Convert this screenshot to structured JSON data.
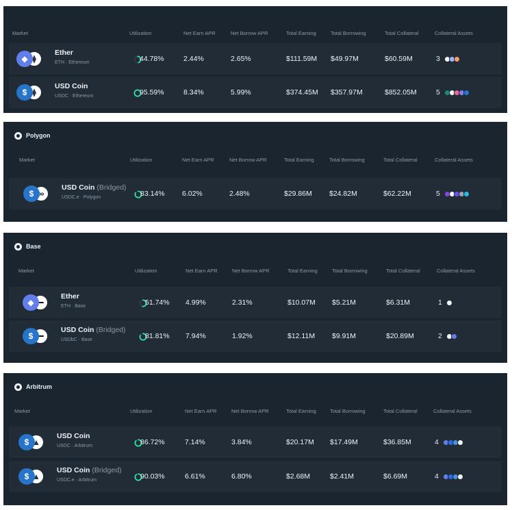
{
  "columns": [
    "Market",
    "Utilization",
    "Net Earn APR",
    "Net Borrow APR",
    "Total Earning",
    "Total Borrowing",
    "Total Collateral",
    "Collateral Assets"
  ],
  "panels": [
    {
      "chain": "",
      "rows": [
        {
          "token": "Ether",
          "bridged": "",
          "sub": "ETH · Ethereum",
          "icon": "eth",
          "net": "ethereum",
          "util": "44.78%",
          "util_fraction": 0.4478,
          "earn": "2.44%",
          "borrow": "2.65%",
          "total_earning": "$111.59M",
          "total_borrowing": "$49.97M",
          "total_collateral": "$60.59M",
          "assets_count": "3",
          "asset_colors": [
            "#f2f4f7",
            "#a5b4fc",
            "#f59e6b"
          ]
        },
        {
          "token": "USD Coin",
          "bridged": "",
          "sub": "USDC · Ethereum",
          "icon": "usdc",
          "net": "ethereum",
          "util": "95.59%",
          "util_fraction": 0.9559,
          "earn": "8.34%",
          "borrow": "5.99%",
          "total_earning": "$374.45M",
          "total_borrowing": "$357.97M",
          "total_collateral": "$852.05M",
          "assets_count": "5",
          "asset_colors": [
            "#1f8a70",
            "#f2f4f7",
            "#e96a8d",
            "#8b7cf6",
            "#2775ca"
          ]
        }
      ]
    },
    {
      "chain": "Polygon",
      "rows": [
        {
          "token": "USD Coin",
          "bridged": "(Bridged)",
          "sub": "USDC.e · Polygon",
          "icon": "usdc",
          "net": "polygon",
          "util": "83.14%",
          "util_fraction": 0.8314,
          "earn": "6.02%",
          "borrow": "2.48%",
          "total_earning": "$29.86M",
          "total_borrowing": "$24.82M",
          "total_collateral": "$62.22M",
          "assets_count": "5",
          "asset_colors": [
            "#8247e5",
            "#f2f4f7",
            "#6f4cff",
            "#9aa4b2",
            "#2bb9e6"
          ]
        }
      ]
    },
    {
      "chain": "Base",
      "rows": [
        {
          "token": "Ether",
          "bridged": "",
          "sub": "ETH · Base",
          "icon": "eth",
          "net": "base",
          "util": "51.74%",
          "util_fraction": 0.5174,
          "earn": "4.99%",
          "borrow": "2.31%",
          "total_earning": "$10.07M",
          "total_borrowing": "$5.21M",
          "total_collateral": "$6.31M",
          "assets_count": "1",
          "asset_colors": [
            "#f2f4f7"
          ]
        },
        {
          "token": "USD Coin",
          "bridged": "(Bridged)",
          "sub": "USDbC · Base",
          "icon": "usdc",
          "net": "base",
          "util": "81.81%",
          "util_fraction": 0.8181,
          "earn": "7.94%",
          "borrow": "1.92%",
          "total_earning": "$12.11M",
          "total_borrowing": "$9.91M",
          "total_collateral": "$20.89M",
          "assets_count": "2",
          "asset_colors": [
            "#f2f4f7",
            "#627eea"
          ]
        }
      ]
    },
    {
      "chain": "Arbitrum",
      "rows": [
        {
          "token": "USD Coin",
          "bridged": "",
          "sub": "USDC · Arbitrum",
          "icon": "usdc",
          "net": "arbitrum",
          "util": "86.72%",
          "util_fraction": 0.8672,
          "earn": "7.14%",
          "borrow": "3.84%",
          "total_earning": "$20.17M",
          "total_borrowing": "$17.49M",
          "total_collateral": "$36.85M",
          "assets_count": "4",
          "asset_colors": [
            "#627eea",
            "#2d6ae3",
            "#4a90e2",
            "#f2f4f7"
          ]
        },
        {
          "token": "USD Coin",
          "bridged": "(Bridged)",
          "sub": "USDC.e · Arbitrum",
          "icon": "usdc",
          "net": "arbitrum",
          "util": "90.03%",
          "util_fraction": 0.9003,
          "earn": "6.61%",
          "borrow": "6.80%",
          "total_earning": "$2.68M",
          "total_borrowing": "$2.41M",
          "total_collateral": "$6.69M",
          "assets_count": "4",
          "asset_colors": [
            "#627eea",
            "#2d6ae3",
            "#4a90e2",
            "#f2f4f7"
          ]
        }
      ]
    }
  ],
  "colors": {
    "panel_bg": "#1b2530",
    "row_bg": "#212c37",
    "ring_track": "#2e3d49",
    "ring_fill": "#2ee6a6"
  }
}
